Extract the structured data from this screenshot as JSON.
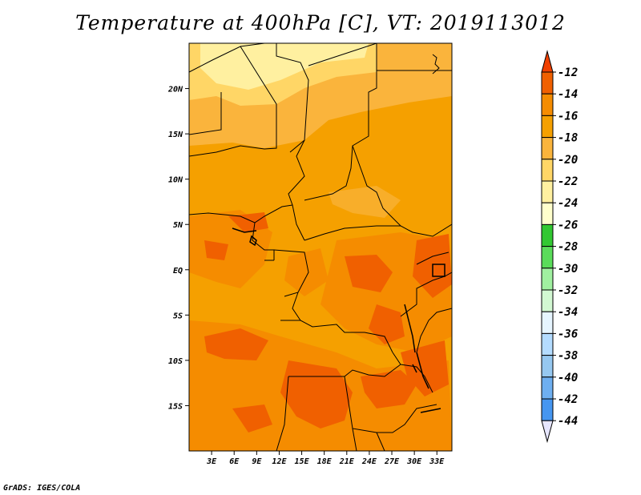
{
  "title": "Temperature at 400hPa [C], VT: 2019113012",
  "footer": "GrADS: IGES/COLA",
  "map": {
    "lon_range": [
      0,
      35
    ],
    "lat_range": [
      -20,
      25
    ],
    "lat_ticks": [
      {
        "value": 20,
        "label": "20N"
      },
      {
        "value": 15,
        "label": "15N"
      },
      {
        "value": 10,
        "label": "10N"
      },
      {
        "value": 5,
        "label": "5N"
      },
      {
        "value": 0,
        "label": "EQ"
      },
      {
        "value": -5,
        "label": "5S"
      },
      {
        "value": -10,
        "label": "10S"
      },
      {
        "value": -15,
        "label": "15S"
      }
    ],
    "lon_ticks": [
      {
        "value": 3,
        "label": "3E"
      },
      {
        "value": 6,
        "label": "6E"
      },
      {
        "value": 9,
        "label": "9E"
      },
      {
        "value": 12,
        "label": "12E"
      },
      {
        "value": 15,
        "label": "15E"
      },
      {
        "value": 18,
        "label": "18E"
      },
      {
        "value": 21,
        "label": "21E"
      },
      {
        "value": 24,
        "label": "24E"
      },
      {
        "value": 27,
        "label": "27E"
      },
      {
        "value": 30,
        "label": "30E"
      },
      {
        "value": 33,
        "label": "33E"
      }
    ]
  },
  "colorbar": {
    "levels": [
      {
        "label": "-12",
        "color": "#f06000"
      },
      {
        "label": "-14",
        "color": "#f58c00"
      },
      {
        "label": "-16",
        "color": "#f5a000"
      },
      {
        "label": "-18",
        "color": "#fab43c"
      },
      {
        "label": "-20",
        "color": "#ffd666"
      },
      {
        "label": "-22",
        "color": "#fff0a0"
      },
      {
        "label": "-24",
        "color": "#ffffcc"
      },
      {
        "label": "-26",
        "color": "#32c832"
      },
      {
        "label": "-28",
        "color": "#5adc5a"
      },
      {
        "label": "-30",
        "color": "#a0f0a0"
      },
      {
        "label": "-32",
        "color": "#d2f8d2"
      },
      {
        "label": "-34",
        "color": "#e6f5ff"
      },
      {
        "label": "-36",
        "color": "#b4dcff"
      },
      {
        "label": "-38",
        "color": "#96c8f0"
      },
      {
        "label": "-40",
        "color": "#6eaff0"
      },
      {
        "label": "-42",
        "color": "#4696f0"
      },
      {
        "label": "-44",
        "color": "#1e6edc"
      }
    ],
    "extra_colors": [
      "#145ac8",
      "#0a3cb4",
      "#0a0a78",
      "#e6e6ff"
    ],
    "over_color": "#f04000"
  }
}
